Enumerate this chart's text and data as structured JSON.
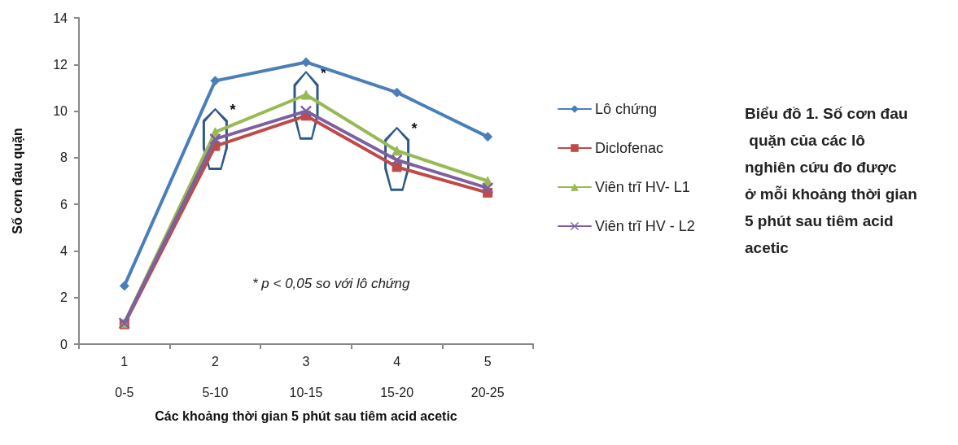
{
  "chart_data": {
    "type": "line",
    "title": "Biểu đồ 1. Số cơn đau quặn của các lô nghiên cứu đo được ở mỗi khoảng thời gian 5 phút sau tiêm acid acetic",
    "xlabel": "Các khoảng thời gian 5 phút sau tiêm acid acetic",
    "ylabel": "Số cơn đau quặn",
    "categories": [
      "1\n\n0-5",
      "2\n\n5-10",
      "3\n\n10-15",
      "4\n\n15-20",
      "5\n\n20-25"
    ],
    "series": [
      {
        "name": "Lô chứng",
        "color": "#4a7ebb",
        "marker": "diamond",
        "values": [
          2.5,
          11.3,
          12.1,
          10.8,
          8.9
        ]
      },
      {
        "name": "Diclofenac",
        "color": "#be4b48",
        "marker": "square",
        "values": [
          0.85,
          8.5,
          9.8,
          7.6,
          6.5
        ]
      },
      {
        "name": "Viên trĩ HV- L1",
        "color": "#98b954",
        "marker": "triangle",
        "values": [
          0.9,
          9.1,
          10.7,
          8.3,
          7.0
        ]
      },
      {
        "name": "Viên trĩ HV - L2",
        "color": "#7d60a0",
        "marker": "cross",
        "values": [
          0.9,
          8.8,
          10.0,
          7.9,
          6.7
        ]
      }
    ],
    "ylim": [
      0,
      14
    ],
    "yticks": [
      0,
      2,
      4,
      6,
      8,
      10,
      12,
      14
    ],
    "grid": false,
    "legend": "right",
    "line_style": "solid",
    "annotations": [
      {
        "text": "*",
        "x": "2\n\n5-10",
        "y": 9.1
      },
      {
        "text": "*",
        "x": "3\n\n10-15",
        "y": 10.7
      },
      {
        "text": "*",
        "x": "4\n\n15-20",
        "y": 8.3
      },
      "* p < 0,05 so với lô chứng"
    ]
  }
}
